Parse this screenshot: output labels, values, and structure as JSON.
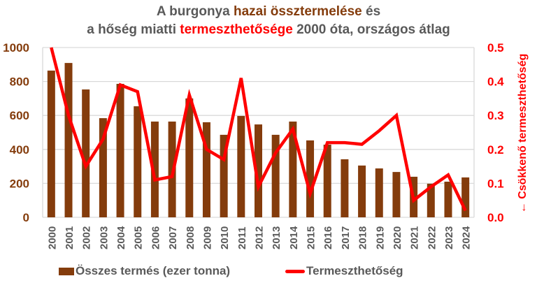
{
  "title": {
    "line1_pre": "A burgonya ",
    "line1_em": "hazai össztermelése",
    "line1_post": " és",
    "line2_pre": "a hőség miatti ",
    "line2_em": "termeszthetősége",
    "line2_post": " 2000 óta, országos átlag"
  },
  "colors": {
    "bar": "#843C0C",
    "line": "#FF0000",
    "text": "#595959",
    "grid": "#D9D9D9"
  },
  "legend": {
    "bar_label": "Összes termés (ezer tonna)",
    "line_label": "Termeszthetőség"
  },
  "chart_data": {
    "type": "bar+line",
    "title": "A burgonya hazai össztermelése és a hőség miatti termeszthetősége 2000 óta, országos átlag",
    "categories": [
      "2000",
      "2001",
      "2002",
      "2003",
      "2004",
      "2005",
      "2006",
      "2007",
      "2008",
      "2009",
      "2010",
      "2011",
      "2012",
      "2013",
      "2014",
      "2015",
      "2016",
      "2017",
      "2018",
      "2019",
      "2020",
      "2021",
      "2022",
      "2023",
      "2024"
    ],
    "series": [
      {
        "name": "Összes termés (ezer tonna)",
        "type": "bar",
        "axis": "left",
        "values": [
          864,
          909,
          753,
          584,
          786,
          654,
          564,
          564,
          700,
          560,
          486,
          597,
          547,
          486,
          564,
          453,
          428,
          342,
          305,
          288,
          267,
          239,
          198,
          210,
          235
        ]
      },
      {
        "name": "Termeszthetőség",
        "type": "line",
        "axis": "right",
        "values": [
          0.5,
          0.3,
          0.15,
          0.23,
          0.39,
          0.37,
          0.11,
          0.12,
          0.36,
          0.2,
          0.17,
          0.41,
          0.09,
          0.19,
          0.26,
          0.07,
          0.22,
          0.22,
          0.215,
          0.255,
          0.3,
          0.05,
          0.09,
          0.125,
          0.02
        ]
      }
    ],
    "xlabel": "",
    "ylabel_left": "",
    "ylabel_right": "← Csökkenő termeszthetőség",
    "ylim_left": [
      0,
      1000
    ],
    "yticks_left": [
      "0",
      "200",
      "400",
      "600",
      "800",
      "1000"
    ],
    "ylim_right": [
      0,
      0.5
    ],
    "yticks_right": [
      "0.0",
      "0.1",
      "0.2",
      "0.3",
      "0.4",
      "0.5"
    ],
    "grid": true,
    "legend_position": "bottom"
  }
}
